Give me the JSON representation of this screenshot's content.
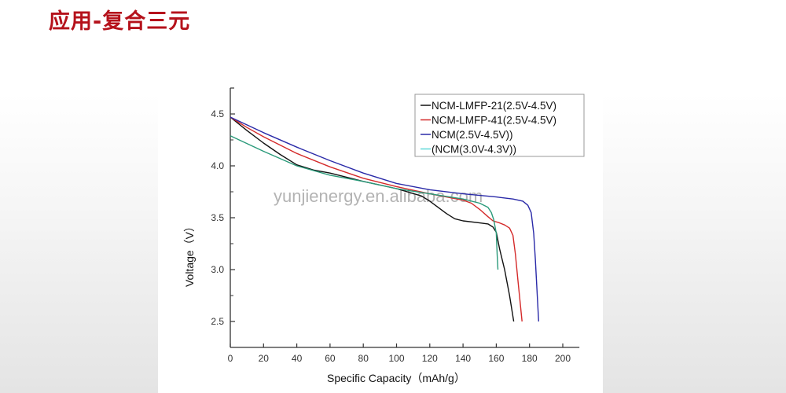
{
  "slide": {
    "title": "应用-复合三元",
    "title_color": "#b5121b"
  },
  "watermark": "yunjienergy.en.alibaba.com",
  "chart_data": {
    "type": "line",
    "title": "",
    "xlabel": "Specific Capacity（mAh/g）",
    "ylabel": "Voltage（V）",
    "xlim": [
      0,
      210
    ],
    "ylim": [
      2.25,
      4.75
    ],
    "x_ticks": [
      0,
      20,
      40,
      60,
      80,
      100,
      120,
      140,
      160,
      180,
      200
    ],
    "x_tick_labels": [
      "0",
      "20",
      "40",
      "60",
      "80",
      "100",
      "120",
      "140",
      "160",
      "180",
      "200"
    ],
    "y_ticks": [
      2.5,
      3.0,
      3.5,
      4.0,
      4.5
    ],
    "y_tick_labels": [
      "2.5",
      "3.0",
      "3.5",
      "4.0",
      "4.5"
    ],
    "grid": false,
    "legend_position": "top-right",
    "series": [
      {
        "name": "NCM-LMFP-21(2.5V-4.5V)",
        "color": "#111111",
        "x": [
          0,
          10,
          20,
          30,
          40,
          50,
          60,
          80,
          100,
          115,
          120,
          125,
          130,
          135,
          140,
          150,
          155,
          158,
          160,
          162,
          165,
          168,
          170.5
        ],
        "y": [
          4.47,
          4.34,
          4.22,
          4.11,
          4.01,
          3.96,
          3.93,
          3.85,
          3.78,
          3.71,
          3.66,
          3.6,
          3.54,
          3.49,
          3.47,
          3.45,
          3.44,
          3.41,
          3.36,
          3.2,
          3.0,
          2.75,
          2.5
        ]
      },
      {
        "name": "NCM-LMFP-41(2.5V-4.5V)",
        "color": "#d42a2a",
        "x": [
          0,
          10,
          20,
          40,
          60,
          80,
          100,
          120,
          140,
          145,
          150,
          155,
          158,
          162,
          165,
          168,
          170,
          171.5,
          173,
          175.5
        ],
        "y": [
          4.47,
          4.37,
          4.28,
          4.12,
          3.99,
          3.88,
          3.8,
          3.73,
          3.67,
          3.64,
          3.58,
          3.51,
          3.47,
          3.45,
          3.43,
          3.4,
          3.33,
          3.15,
          2.9,
          2.5
        ]
      },
      {
        "name": "NCM(2.5V-4.5V))",
        "color": "#2a2aa8",
        "x": [
          0,
          20,
          40,
          60,
          80,
          100,
          120,
          140,
          160,
          170,
          176,
          179,
          181,
          182.5,
          183.5,
          184.5,
          185.5
        ],
        "y": [
          4.47,
          4.32,
          4.18,
          4.05,
          3.93,
          3.83,
          3.77,
          3.73,
          3.7,
          3.68,
          3.66,
          3.62,
          3.55,
          3.35,
          3.1,
          2.8,
          2.5
        ]
      },
      {
        "name": "(NCM(3.0V-4.3V))",
        "color": "#2a9a7a",
        "legend_swatch_color": "#5fd8d8",
        "x": [
          0,
          20,
          40,
          60,
          80,
          100,
          120,
          140,
          150,
          155,
          157,
          158.5,
          160,
          160.5,
          161
        ],
        "y": [
          4.29,
          4.14,
          4.0,
          3.91,
          3.85,
          3.78,
          3.73,
          3.68,
          3.64,
          3.6,
          3.55,
          3.48,
          3.35,
          3.15,
          3.0
        ]
      }
    ]
  }
}
